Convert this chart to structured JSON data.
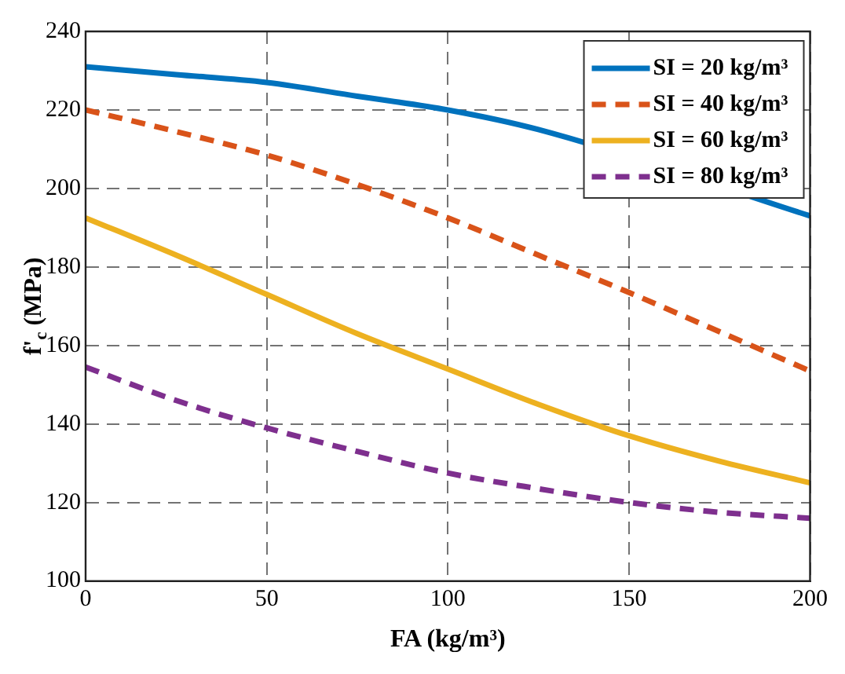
{
  "chart_data": {
    "type": "line",
    "xlabel": "FA (kg/m³)",
    "ylabel": "f'$_{c}$ (MPa)",
    "x": [
      0,
      25,
      50,
      75,
      100,
      125,
      150,
      175,
      200
    ],
    "xlim": [
      0,
      200
    ],
    "xticks": [
      0,
      50,
      100,
      150,
      200
    ],
    "ylim": [
      100,
      240
    ],
    "yticks": [
      100,
      120,
      140,
      160,
      180,
      200,
      220,
      240
    ],
    "grid": true,
    "legend": "top right",
    "marker": "none",
    "series": [
      {
        "name": "SI = 20 kg/m³",
        "color": "#0072bd",
        "line_style": "solid",
        "values": [
          231,
          229,
          227,
          223.5,
          220,
          215,
          null,
          null,
          193
        ]
      },
      {
        "name": "SI = 40 kg/m³",
        "color": "#d95319",
        "line_style": "dashed",
        "values": [
          220,
          214.5,
          208.5,
          201,
          192.5,
          183,
          173.5,
          163.5,
          153.5
        ]
      },
      {
        "name": "SI = 60 kg/m³",
        "color": "#edb120",
        "line_style": "solid",
        "values": [
          192.5,
          183,
          173,
          163,
          154,
          145,
          137,
          130.5,
          125
        ]
      },
      {
        "name": "SI = 80 kg/m³",
        "color": "#7e2f8e",
        "line_style": "dashed",
        "values": [
          154.5,
          146,
          139,
          133,
          127.5,
          123.5,
          120,
          117.5,
          116
        ]
      }
    ]
  }
}
